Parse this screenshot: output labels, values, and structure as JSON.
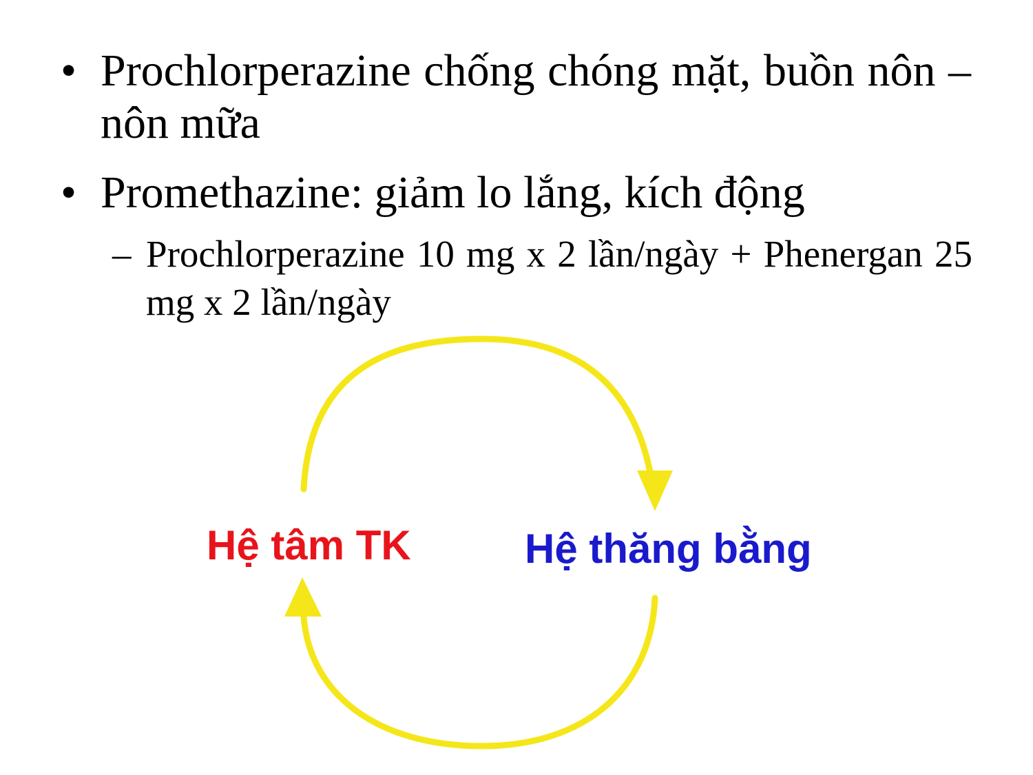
{
  "bullets": [
    {
      "text": "Prochlorperazine chống chóng mặt, buồn nôn – nôn mữa"
    },
    {
      "text": "Promethazine: giảm lo lắng, kích động"
    }
  ],
  "sub_bullets": [
    {
      "dash": "–",
      "text": "Prochlorperazine 10 mg x 2 lần/ngày + Phenergan 25 mg x 2 lần/ngày"
    }
  ],
  "bullet_symbol": "•",
  "diagram": {
    "left_node": {
      "label": "Hệ tâm TK",
      "color": "#e8141b"
    },
    "right_node": {
      "label": "Hệ thăng bằng",
      "color": "#1a1acc"
    },
    "arrow_color": "#f5e61a"
  }
}
